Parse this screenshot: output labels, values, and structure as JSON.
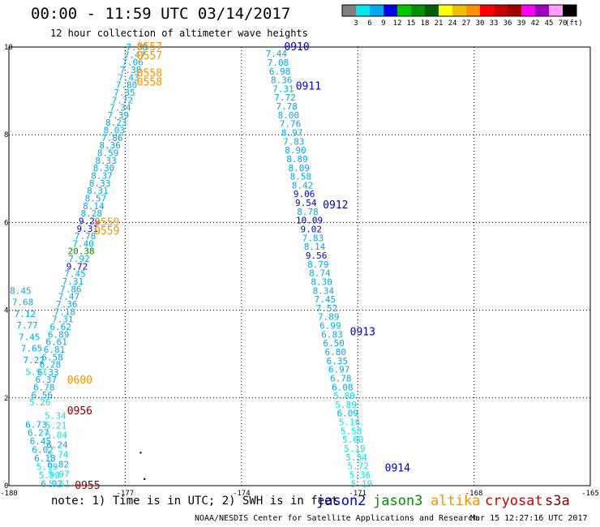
{
  "header": {
    "title": "00:00 - 11:59 UTC 03/14/2017",
    "subtitle": "12 hour collection of altimeter wave heights"
  },
  "colorbar": {
    "unit": "(ft)",
    "ticks": [
      "3",
      "6",
      "9",
      "12",
      "15",
      "18",
      "21",
      "24",
      "27",
      "30",
      "33",
      "36",
      "39",
      "42",
      "45",
      "70"
    ],
    "colors": [
      "#808080",
      "#00e8e8",
      "#00a8f0",
      "#0000f0",
      "#00c800",
      "#009000",
      "#006000",
      "#ffff00",
      "#f0c000",
      "#ff9000",
      "#ff0000",
      "#c80000",
      "#a00000",
      "#ff00ff",
      "#a000c0",
      "#ffa0ff",
      "#000000"
    ]
  },
  "footer": {
    "note": "note: 1) Time is in UTC; 2) SWH is in feet",
    "credit": "NOAA/NESDIS Center for Satellite Applications and Research",
    "stamp": "Mar 15 12:27:16 UTC 2017",
    "satellites": [
      {
        "name": "jason2",
        "color": "#0000d0"
      },
      {
        "name": "jason3",
        "color": "#009000"
      },
      {
        "name": "altika",
        "color": "#ff9000"
      },
      {
        "name": "cryosat",
        "color": "#d00000"
      },
      {
        "name": "s3a",
        "color": "#800000"
      }
    ]
  },
  "chart_data": {
    "type": "scatter",
    "xlim": [
      -180,
      -165
    ],
    "ylim": [
      0,
      10
    ],
    "x_ticks": [
      "-180",
      "-177",
      "-174",
      "-171",
      "-168",
      "-165"
    ],
    "y_ticks": [
      "0",
      "2",
      "4",
      "6",
      "8",
      "10"
    ],
    "grid": true,
    "passes": [
      {
        "label": "0910",
        "satellite": "jason2",
        "x": -172.9,
        "y": 10.0
      },
      {
        "label": "0911",
        "satellite": "jason2",
        "x": -172.6,
        "y": 9.1
      },
      {
        "label": "0912",
        "satellite": "jason2",
        "x": -171.9,
        "y": 6.4
      },
      {
        "label": "0913",
        "satellite": "jason2",
        "x": -171.2,
        "y": 3.5
      },
      {
        "label": "0914",
        "satellite": "jason2",
        "x": -170.3,
        "y": 0.4
      },
      {
        "label": "0557",
        "satellite": "altika",
        "x": -176.7,
        "y": 10.0
      },
      {
        "label": "0557",
        "satellite": "altika",
        "x": -176.7,
        "y": 9.8
      },
      {
        "label": "0558",
        "satellite": "altika",
        "x": -176.7,
        "y": 9.4
      },
      {
        "label": "0558",
        "satellite": "altika",
        "x": -176.7,
        "y": 9.2
      },
      {
        "label": "0559",
        "satellite": "altika",
        "x": -177.8,
        "y": 6.0
      },
      {
        "label": "0559",
        "satellite": "altika",
        "x": -177.8,
        "y": 5.8
      },
      {
        "label": "0600",
        "satellite": "altika",
        "x": -178.5,
        "y": 2.4
      },
      {
        "label": "0956",
        "satellite": "s3a",
        "x": -178.5,
        "y": 1.7
      },
      {
        "label": "0955",
        "satellite": "s3a",
        "x": -178.3,
        "y": 0.0
      }
    ],
    "tracks": [
      {
        "satellite": "jason2",
        "color": "#00a8f0",
        "start": [
          -173.1,
          9.85
        ],
        "end": [
          -170.9,
          0.05
        ],
        "values": [
          "7.44",
          "7.08",
          "6.98",
          "8.36",
          "7.31",
          "7.72",
          "7.78",
          "8.00",
          "7.76",
          "8.97",
          "7.83",
          "8.90",
          "8.89",
          "8.09",
          "8.58",
          "8.42",
          "9.06",
          "9.54",
          "8.78",
          "10.09",
          "9.02",
          "7.83",
          "8.14",
          "9.56",
          "8.79",
          "8.74",
          "8.30",
          "8.34",
          "7.45",
          "7.52",
          "7.89",
          "6.99",
          "6.83",
          "6.50",
          "6.80",
          "6.35",
          "6.97",
          "6.78",
          "6.08",
          "5.80",
          "5.89",
          "6.09",
          "5.16",
          "5.58",
          "5.00",
          "5.19",
          "5.34",
          "5.72",
          "5.36",
          "5.19"
        ]
      },
      {
        "satellite": "jason2",
        "color": "#00a8f0",
        "start": [
          -176.7,
          10.0
        ],
        "end": [
          -179.2,
          1.9
        ],
        "values": [
          "7.08",
          "7.47",
          "7.06",
          "7.38",
          "7.43",
          "7.80",
          "7.35",
          "7.72",
          "7.34",
          "7.39",
          "8.23",
          "8.03",
          "7.86",
          "8.36",
          "8.59",
          "8.33",
          "8.30",
          "8.37",
          "8.33",
          "8.31",
          "8.57",
          "8.14",
          "8.28",
          "9.29",
          "9.31",
          "7.78",
          "7.40",
          "20.38",
          "7.92",
          "9.72",
          "7.45",
          "7.31",
          "7.86",
          "7.47",
          "7.36",
          "7.18",
          "7.31",
          "6.62",
          "6.89",
          "6.61",
          "6.81",
          "6.58",
          "6.28",
          "6.33",
          "6.37",
          "6.78",
          "6.56",
          "5.26"
        ]
      },
      {
        "satellite": "s3a",
        "color": "#00a8f0",
        "start": [
          -179.3,
          1.4
        ],
        "end": [
          -178.9,
          0.05
        ],
        "values": [
          "6.73",
          "6.27",
          "6.45",
          "6.02",
          "6.18",
          "5.99",
          "5.99",
          "6.02"
        ]
      },
      {
        "satellite": "s3a",
        "color": "#00a8f0",
        "start": [
          -178.8,
          1.6
        ],
        "end": [
          -178.7,
          0.05
        ],
        "values": [
          "5.34",
          "5.21",
          "5.04",
          "6.24",
          "5.74",
          "6.82",
          "5.97",
          "5.51"
        ]
      },
      {
        "satellite": "jason2",
        "color": "#00a8f0",
        "start": [
          -179.7,
          4.45
        ],
        "end": [
          -179.3,
          2.6
        ],
        "values": [
          "8.45",
          "7.68",
          "7.12",
          "7.77",
          "7.45",
          "7.65",
          "7.22",
          "5.97"
        ]
      }
    ],
    "dots": [
      [
        -176.6,
        0.75
      ],
      [
        -176.5,
        0.15
      ]
    ]
  }
}
